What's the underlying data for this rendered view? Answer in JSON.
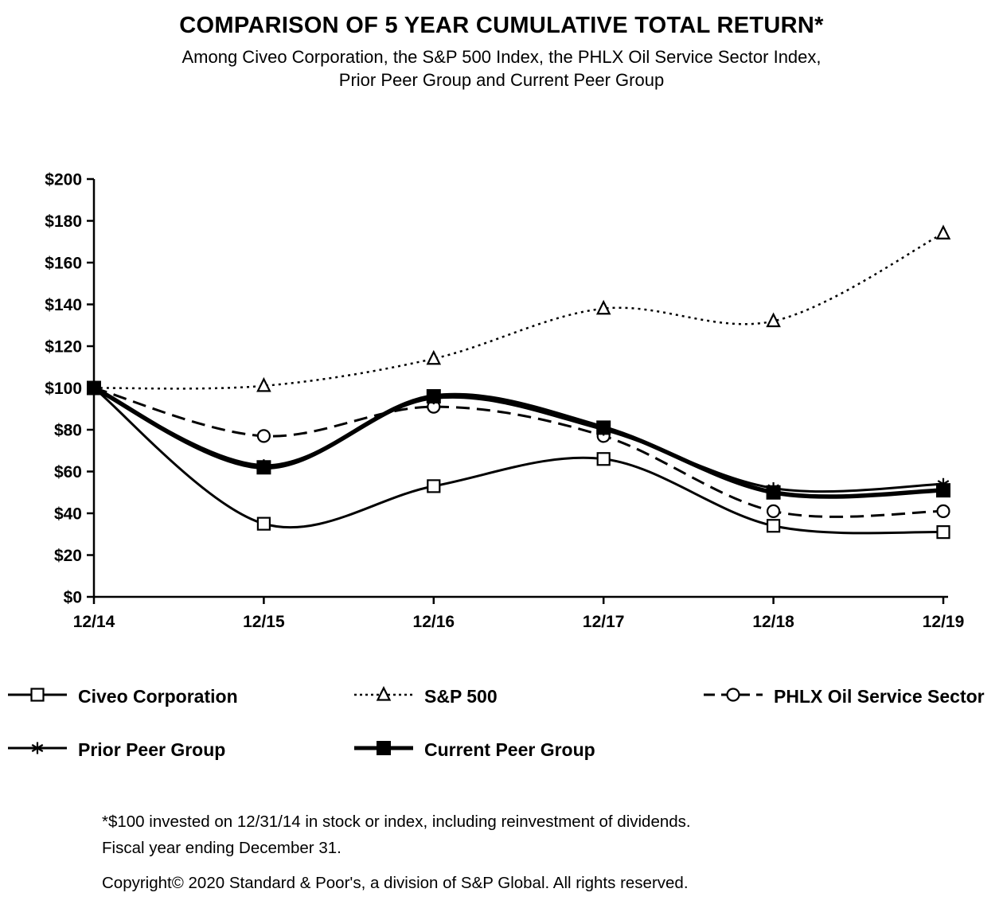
{
  "title": "COMPARISON OF 5 YEAR CUMULATIVE TOTAL RETURN*",
  "subtitle_line1": "Among Civeo Corporation, the S&P 500 Index, the PHLX Oil Service Sector Index,",
  "subtitle_line2": "Prior Peer Group and Current Peer Group",
  "chart_data": {
    "type": "line",
    "x": [
      "12/14",
      "12/15",
      "12/16",
      "12/17",
      "12/18",
      "12/19"
    ],
    "ylim": [
      0,
      200
    ],
    "ytick_step": 20,
    "ytick_labels": [
      "$0",
      "$20",
      "$40",
      "$60",
      "$80",
      "$100",
      "$120",
      "$140",
      "$160",
      "$180",
      "$200"
    ],
    "grid": false,
    "legend_position": "bottom",
    "background_color": "#ffffff",
    "axis_color": "#000000",
    "series": [
      {
        "name": "Civeo Corporation",
        "values": [
          100,
          35,
          53,
          66,
          34,
          31
        ],
        "line": "solid",
        "marker": "open-square",
        "width": 3,
        "color": "#000000"
      },
      {
        "name": "S&P 500",
        "values": [
          100,
          101,
          114,
          138,
          132,
          174
        ],
        "line": "dotted",
        "marker": "open-triangle",
        "width": 2.5,
        "color": "#000000"
      },
      {
        "name": "PHLX Oil Service Sector",
        "values": [
          100,
          77,
          91,
          77,
          41,
          41
        ],
        "line": "dashed",
        "marker": "open-circle",
        "width": 3,
        "color": "#000000"
      },
      {
        "name": "Prior Peer Group",
        "values": [
          100,
          63,
          95,
          80,
          52,
          54
        ],
        "line": "solid",
        "marker": "asterisk",
        "width": 3,
        "color": "#000000"
      },
      {
        "name": "Current Peer Group",
        "values": [
          100,
          62,
          96,
          81,
          50,
          51
        ],
        "line": "solid",
        "marker": "filled-square",
        "width": 5.5,
        "color": "#000000"
      }
    ]
  },
  "footnote_line1": "*$100 invested on 12/31/14 in stock or index, including reinvestment of dividends.",
  "footnote_line2": "Fiscal year ending December 31.",
  "copyright": "Copyright© 2020 Standard & Poor's, a division of S&P Global. All rights reserved."
}
